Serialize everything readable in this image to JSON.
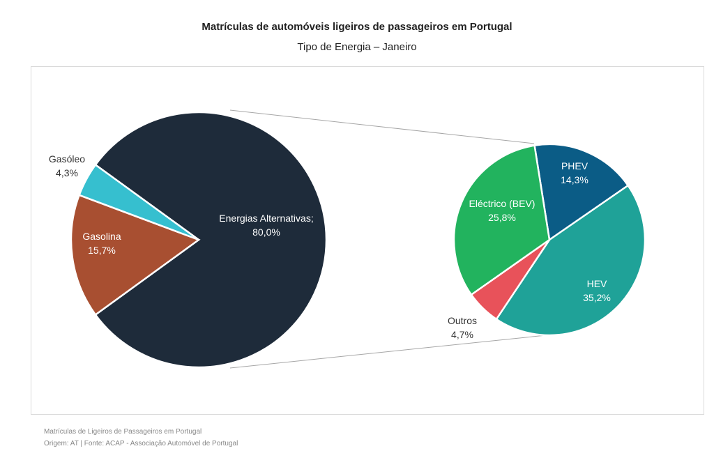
{
  "header": {
    "title": "Matrículas de automóveis ligeiros de passageiros em Portugal",
    "subtitle": "Tipo de Energia – Janeiro"
  },
  "chart_data": {
    "type": "pie",
    "subtype": "pie-of-pie",
    "title": "Matrículas de automóveis ligeiros de passageiros em Portugal",
    "subtitle": "Tipo de Energia – Janeiro",
    "primary": [
      {
        "label": "Energias Alternativas;",
        "value": 80.0,
        "text": "80,0%",
        "color": "#1e2b3a"
      },
      {
        "label": "Gasolina",
        "value": 15.7,
        "text": "15,7%",
        "color": "#a84f31"
      },
      {
        "label": "Gasóleo",
        "value": 4.3,
        "text": "4,3%",
        "color": "#36bfcf"
      }
    ],
    "secondary": [
      {
        "label": "PHEV",
        "value": 14.3,
        "text": "14,3%",
        "color": "#0b5c86"
      },
      {
        "label": "HEV",
        "value": 35.2,
        "text": "35,2%",
        "color": "#1fa298"
      },
      {
        "label": "Outros",
        "value": 4.7,
        "text": "4,7%",
        "color": "#e8525a"
      },
      {
        "label": "Eléctrico (BEV)",
        "value": 25.8,
        "text": "25,8%",
        "color": "#22b35e"
      }
    ],
    "legend": "none"
  },
  "footer": {
    "line1": "Matrículas de Ligeiros de Passageiros em Portugal",
    "line2": "Origem: AT | Fonte: ACAP - Associação Automóvel de Portugal"
  }
}
